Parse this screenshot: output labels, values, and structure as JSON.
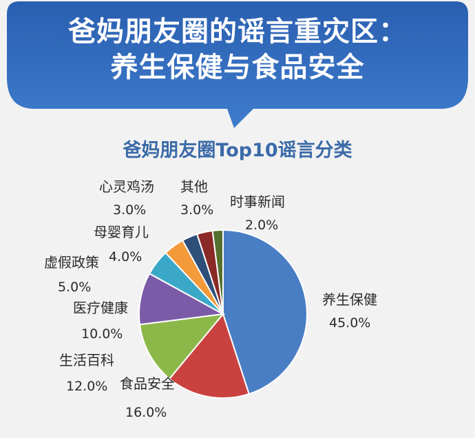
{
  "header": {
    "title_line1": "爸妈朋友圈的谣言重灾区：",
    "title_line2": "养生保健与食品安全"
  },
  "chart_data": {
    "type": "pie",
    "title": "爸妈朋友圈Top10谣言分类",
    "slices": [
      {
        "label": "养生保健",
        "value": 45.0,
        "display": "45.0%",
        "color": "#4a7ec4"
      },
      {
        "label": "食品安全",
        "value": 16.0,
        "display": "16.0%",
        "color": "#c9423f"
      },
      {
        "label": "生活百科",
        "value": 12.0,
        "display": "12.0%",
        "color": "#8cb84a"
      },
      {
        "label": "医疗健康",
        "value": 10.0,
        "display": "10.0%",
        "color": "#7b5ba8"
      },
      {
        "label": "虚假政策",
        "value": 5.0,
        "display": "5.0%",
        "color": "#3ba8c8"
      },
      {
        "label": "母婴育儿",
        "value": 4.0,
        "display": "4.0%",
        "color": "#f39a3a"
      },
      {
        "label": "心灵鸡汤",
        "value": 3.0,
        "display": "3.0%",
        "color": "#2e4f7a"
      },
      {
        "label": "其他",
        "value": 3.0,
        "display": "3.0%",
        "color": "#8a2a28"
      },
      {
        "label": "时事新闻",
        "value": 2.0,
        "display": "2.0%",
        "color": "#55702e"
      }
    ]
  }
}
